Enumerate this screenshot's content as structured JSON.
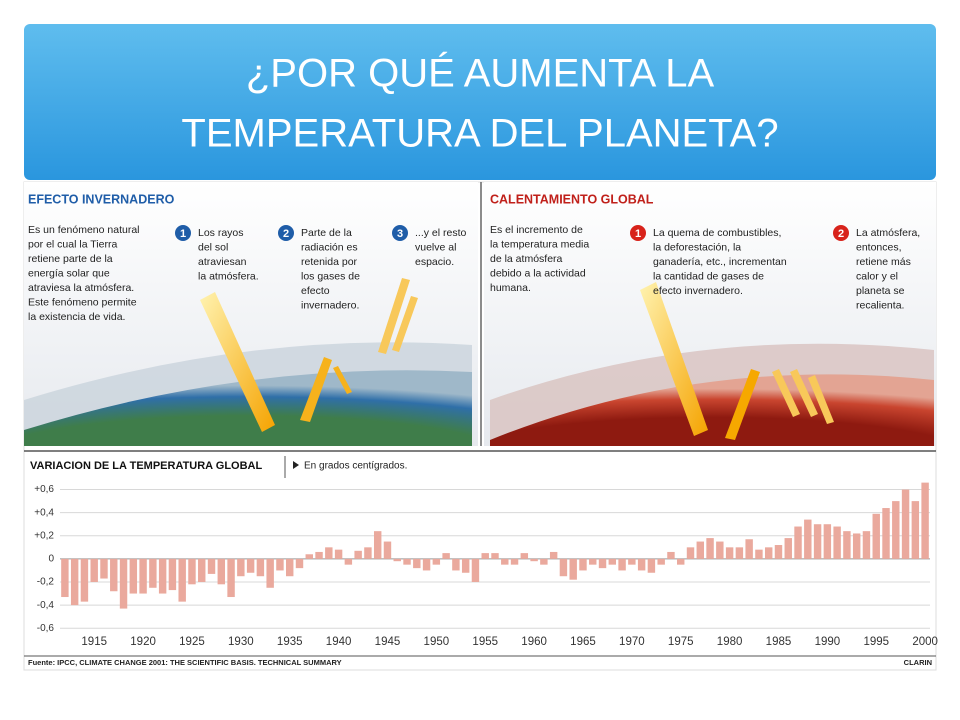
{
  "slide": {
    "title_lines": [
      "¿POR QUÉ AUMENTA LA",
      "TEMPERATURA DEL PLANETA?"
    ]
  },
  "left_panel": {
    "heading": "EFECTO INVERNADERO",
    "intro": [
      "Es un fenómeno natural",
      "por el cual la Tierra",
      "retiene parte de la",
      "energía solar que",
      "atraviesa la atmósfera.",
      "Este fenómeno permite",
      "la existencia de vida."
    ],
    "steps": [
      {
        "number": "1",
        "lines": [
          "Los rayos",
          "del sol",
          "atraviesan",
          "la atmósfera."
        ]
      },
      {
        "number": "2",
        "lines": [
          "Parte de la",
          "radiación es",
          "retenida por",
          "los gases de",
          "efecto",
          "invernadero."
        ]
      },
      {
        "number": "3",
        "lines": [
          "...y el resto",
          "vuelve al",
          "espacio."
        ]
      }
    ]
  },
  "right_panel": {
    "heading": "CALENTAMIENTO GLOBAL",
    "intro": [
      "Es el incremento de",
      "la temperatura media",
      "de la atmósfera",
      "debido a la actividad",
      "humana."
    ],
    "steps": [
      {
        "number": "1",
        "lines": [
          "La quema de combustibles,",
          "la deforestación, la",
          "ganadería, etc., incrementan",
          "la cantidad de gases de",
          "efecto invernadero."
        ]
      },
      {
        "number": "2",
        "lines": [
          "La atmósfera,",
          "entonces,",
          "retiene más",
          "calor y el",
          "planeta se",
          "recalienta."
        ]
      }
    ]
  },
  "chart_data": {
    "type": "bar",
    "title": "VARIACION DE LA TEMPERATURA GLOBAL",
    "subtitle": "En grados centígrados.",
    "source": "Fuente: IPCC, CLIMATE CHANGE 2001: THE SCIENTIFIC BASIS. TECHNICAL SUMMARY",
    "credit": "CLARIN",
    "color": "#eaa99d",
    "grid": true,
    "ylim": [
      -0.65,
      0.7
    ],
    "yticks": [
      {
        "value": 0.6,
        "label": "+0,6"
      },
      {
        "value": 0.4,
        "label": "+0,4"
      },
      {
        "value": 0.2,
        "label": "+0,2"
      },
      0,
      {
        "value": -0.2,
        "label": "-0,2"
      },
      {
        "value": -0.4,
        "label": "-0,4"
      },
      {
        "value": -0.6,
        "label": "-0,6"
      }
    ],
    "categories": [
      null,
      null,
      null,
      "1915",
      null,
      null,
      null,
      null,
      "1920",
      null,
      null,
      null,
      null,
      "1925",
      null,
      null,
      null,
      null,
      "1930",
      null,
      null,
      null,
      null,
      "1935",
      null,
      null,
      null,
      null,
      "1940",
      null,
      null,
      null,
      null,
      "1945",
      null,
      null,
      null,
      null,
      "1950",
      null,
      null,
      null,
      null,
      "1955",
      null,
      null,
      null,
      null,
      "1960",
      null,
      null,
      null,
      null,
      "1965",
      null,
      null,
      null,
      null,
      "1970",
      null,
      null,
      null,
      null,
      "1975",
      null,
      null,
      null,
      null,
      "1980",
      null,
      null,
      null,
      null,
      "1985",
      null,
      null,
      null,
      null,
      "1990",
      null,
      null,
      null,
      null,
      "1995",
      null,
      null,
      null,
      null,
      "2000"
    ],
    "values": [
      -0.33,
      -0.4,
      -0.37,
      -0.2,
      -0.17,
      -0.28,
      -0.43,
      -0.3,
      -0.3,
      -0.25,
      -0.3,
      -0.27,
      -0.37,
      -0.22,
      -0.2,
      -0.13,
      -0.22,
      -0.33,
      -0.15,
      -0.12,
      -0.15,
      -0.25,
      -0.1,
      -0.15,
      -0.08,
      0.04,
      0.06,
      0.1,
      0.08,
      -0.05,
      0.07,
      0.1,
      0.24,
      0.15,
      -0.02,
      -0.05,
      -0.08,
      -0.1,
      -0.05,
      0.05,
      -0.1,
      -0.12,
      -0.2,
      0.05,
      0.05,
      -0.05,
      -0.05,
      0.05,
      -0.02,
      -0.05,
      0.06,
      -0.15,
      -0.18,
      -0.1,
      -0.05,
      -0.08,
      -0.05,
      -0.1,
      -0.05,
      -0.1,
      -0.12,
      -0.05,
      0.06,
      -0.05,
      0.1,
      0.15,
      0.18,
      0.15,
      0.1,
      0.1,
      0.17,
      0.08,
      0.1,
      0.12,
      0.18,
      0.28,
      0.34,
      0.3,
      0.3,
      0.28,
      0.24,
      0.22,
      0.24,
      0.39,
      0.44,
      0.5,
      0.6,
      0.5,
      0.66
    ]
  }
}
